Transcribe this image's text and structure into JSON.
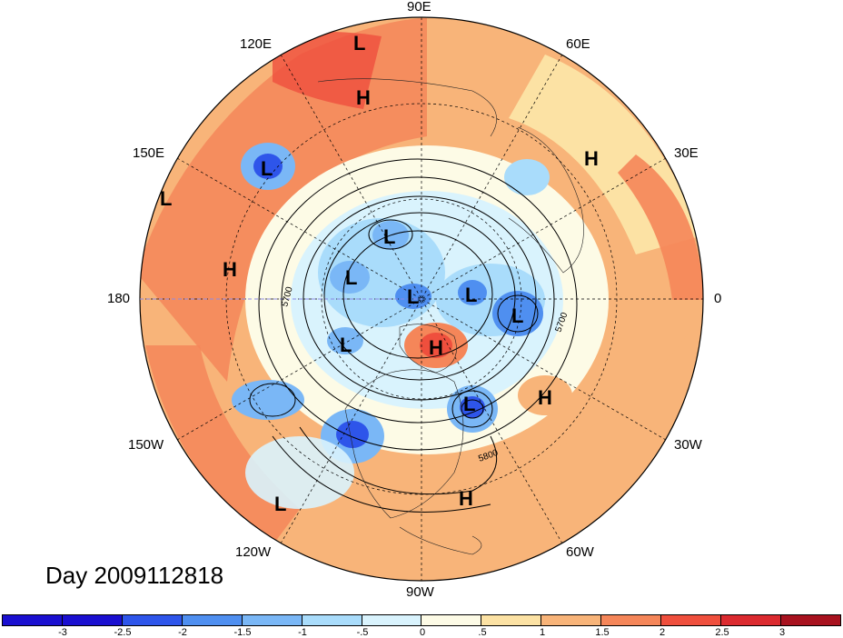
{
  "map": {
    "title": "Day 2009112818",
    "projection": "north-polar-stereographic",
    "longitude_labels": [
      {
        "id": "90e",
        "text": "90E"
      },
      {
        "id": "60e",
        "text": "60E"
      },
      {
        "id": "30e",
        "text": "30E"
      },
      {
        "id": "0",
        "text": "0"
      },
      {
        "id": "30w",
        "text": "30W"
      },
      {
        "id": "60w",
        "text": "60W"
      },
      {
        "id": "90w",
        "text": "90W"
      },
      {
        "id": "120w",
        "text": "120W"
      },
      {
        "id": "150w",
        "text": "150W"
      },
      {
        "id": "180",
        "text": "180"
      },
      {
        "id": "150e",
        "text": "150E"
      },
      {
        "id": "120e",
        "text": "120E"
      }
    ],
    "pressure_centers": [
      {
        "type": "L",
        "label": "L"
      },
      {
        "type": "H",
        "label": "H"
      },
      {
        "type": "L",
        "label": "L"
      },
      {
        "type": "H",
        "label": "H"
      },
      {
        "type": "L",
        "label": "L"
      },
      {
        "type": "H",
        "label": "H"
      },
      {
        "type": "L",
        "label": "L"
      },
      {
        "type": "L",
        "label": "L"
      },
      {
        "type": "L",
        "label": "L"
      },
      {
        "type": "L",
        "label": "L"
      },
      {
        "type": "L",
        "label": "L"
      },
      {
        "type": "H",
        "label": "H"
      },
      {
        "type": "L",
        "label": "L"
      },
      {
        "type": "H",
        "label": "H"
      },
      {
        "type": "L",
        "label": "L"
      },
      {
        "type": "H",
        "label": "H"
      },
      {
        "type": "L",
        "label": "L"
      }
    ],
    "contour_labels": [
      "5700",
      "5700",
      "5800"
    ]
  },
  "colorbar": {
    "ticks": [
      "-3",
      "-2.5",
      "-2",
      "-1.5",
      "-1",
      "-.5",
      "0",
      ".5",
      "1",
      "1.5",
      "2",
      "2.5",
      "3"
    ],
    "colors": [
      "#1a0fd0",
      "#2e55ea",
      "#4f8ff0",
      "#7ab7f6",
      "#a9dcfb",
      "#d9f3fd",
      "#fdfbe6",
      "#fce2a4",
      "#f8b479",
      "#f58659",
      "#ef4f3d",
      "#db2a2f",
      "#a8121f"
    ]
  }
}
